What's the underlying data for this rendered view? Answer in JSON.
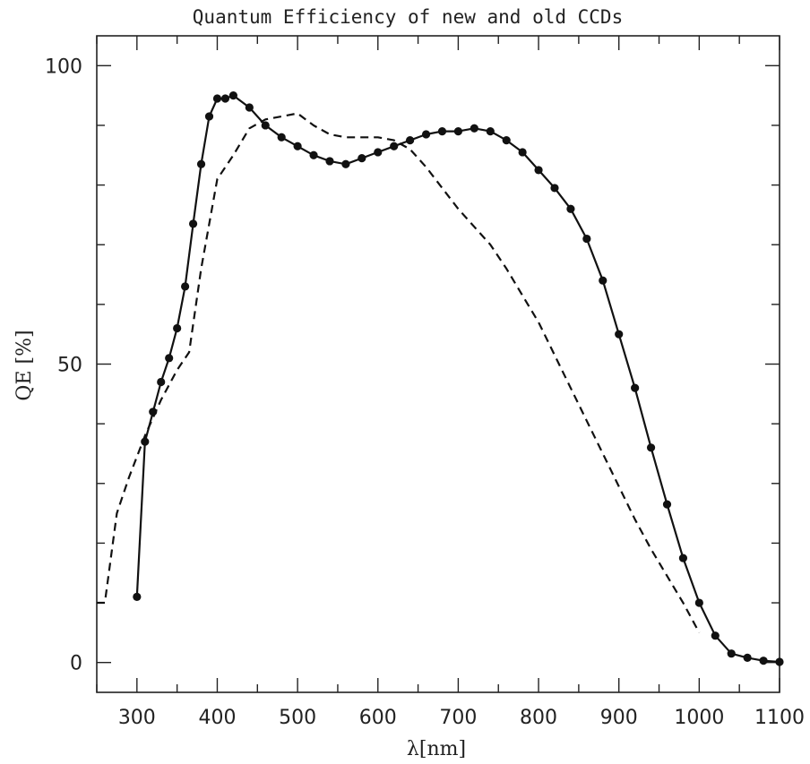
{
  "chart_data": {
    "type": "line",
    "title": "Quantum Efficiency of new and old CCDs",
    "xlabel": "λ[nm]",
    "ylabel": "QE [%]",
    "xlim": [
      250,
      1100
    ],
    "ylim": [
      -5,
      105
    ],
    "x_ticks": [
      300,
      400,
      500,
      600,
      700,
      800,
      900,
      1000,
      1100
    ],
    "y_ticks": [
      0,
      50,
      100
    ],
    "grid": false,
    "series": [
      {
        "style": "solid-markers",
        "x": [
          300,
          310,
          320,
          330,
          340,
          350,
          360,
          370,
          380,
          390,
          400,
          410,
          420,
          440,
          460,
          480,
          500,
          520,
          540,
          560,
          580,
          600,
          620,
          640,
          660,
          680,
          700,
          720,
          740,
          760,
          780,
          800,
          820,
          840,
          860,
          880,
          900,
          920,
          940,
          960,
          980,
          1000,
          1020,
          1040,
          1060,
          1080,
          1100
        ],
        "values": [
          11,
          37,
          42,
          47,
          51,
          56,
          63,
          73.5,
          83.5,
          91.5,
          94.5,
          94.5,
          95,
          93,
          90,
          88,
          86.5,
          85,
          84,
          83.5,
          84.5,
          85.5,
          86.5,
          87.5,
          88.5,
          89,
          89,
          89.5,
          89,
          87.5,
          85.5,
          82.5,
          79.5,
          76,
          71,
          64,
          55,
          46,
          36,
          26.5,
          17.5,
          10,
          4.5,
          1.5,
          0.8,
          0.3,
          0.1
        ]
      },
      {
        "style": "dashed",
        "x": [
          250,
          260,
          275,
          290,
          310,
          330,
          350,
          365,
          380,
          400,
          420,
          440,
          460,
          480,
          500,
          520,
          540,
          560,
          600,
          620,
          640,
          660,
          680,
          700,
          720,
          740,
          760,
          780,
          800,
          820,
          840,
          860,
          880,
          900,
          920,
          940,
          960,
          980,
          1000
        ],
        "values": [
          10,
          10,
          25,
          31,
          38,
          44,
          49,
          52,
          66,
          81,
          85,
          89.5,
          91,
          91.5,
          92,
          90,
          88.5,
          88,
          88,
          87.5,
          86,
          83,
          79.5,
          76,
          73,
          70,
          66,
          61.5,
          57,
          51.5,
          46,
          40.5,
          35,
          29.5,
          24,
          19,
          14.5,
          10,
          5
        ]
      }
    ]
  }
}
